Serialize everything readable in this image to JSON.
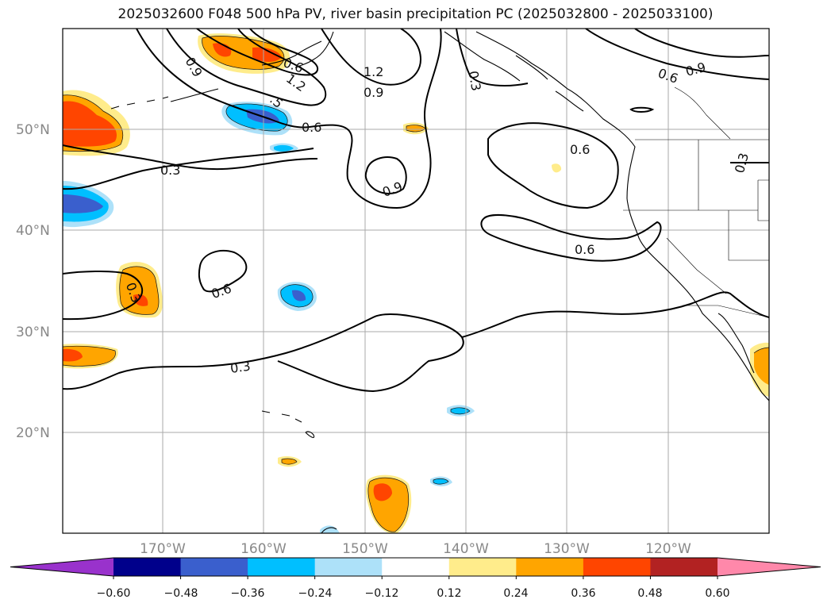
{
  "title": "2025032600 F048 500 hPa PV, river basin precipitation PC (2025032800 - 2025033100)",
  "map": {
    "lat_labels": [
      "50°N",
      "40°N",
      "30°N",
      "20°N"
    ],
    "lon_labels": [
      "170°W",
      "160°W",
      "150°W",
      "140°W",
      "130°W",
      "120°W"
    ],
    "contour_labels": [
      "0.9",
      "0.6",
      "1.2",
      "0.9",
      "0.3",
      "0.9",
      "1.2",
      ".5",
      "0.6",
      "0.3",
      "0.9",
      "0.6",
      "0.6",
      "0.3",
      "0.6",
      "0.3",
      "0.6",
      "0.3"
    ]
  },
  "colorbar": {
    "tick_labels": [
      "−0.60",
      "−0.48",
      "−0.36",
      "−0.24",
      "−0.12",
      "0.12",
      "0.24",
      "0.36",
      "0.48",
      "0.60"
    ],
    "colors": [
      "#9932CC",
      "#00008B",
      "#3A5FCD",
      "#00BFFF",
      "#ADE1F9",
      "#FFFFFF",
      "#FFEC8B",
      "#FFA500",
      "#FF4500",
      "#B22222",
      "#FF88AA"
    ]
  }
}
